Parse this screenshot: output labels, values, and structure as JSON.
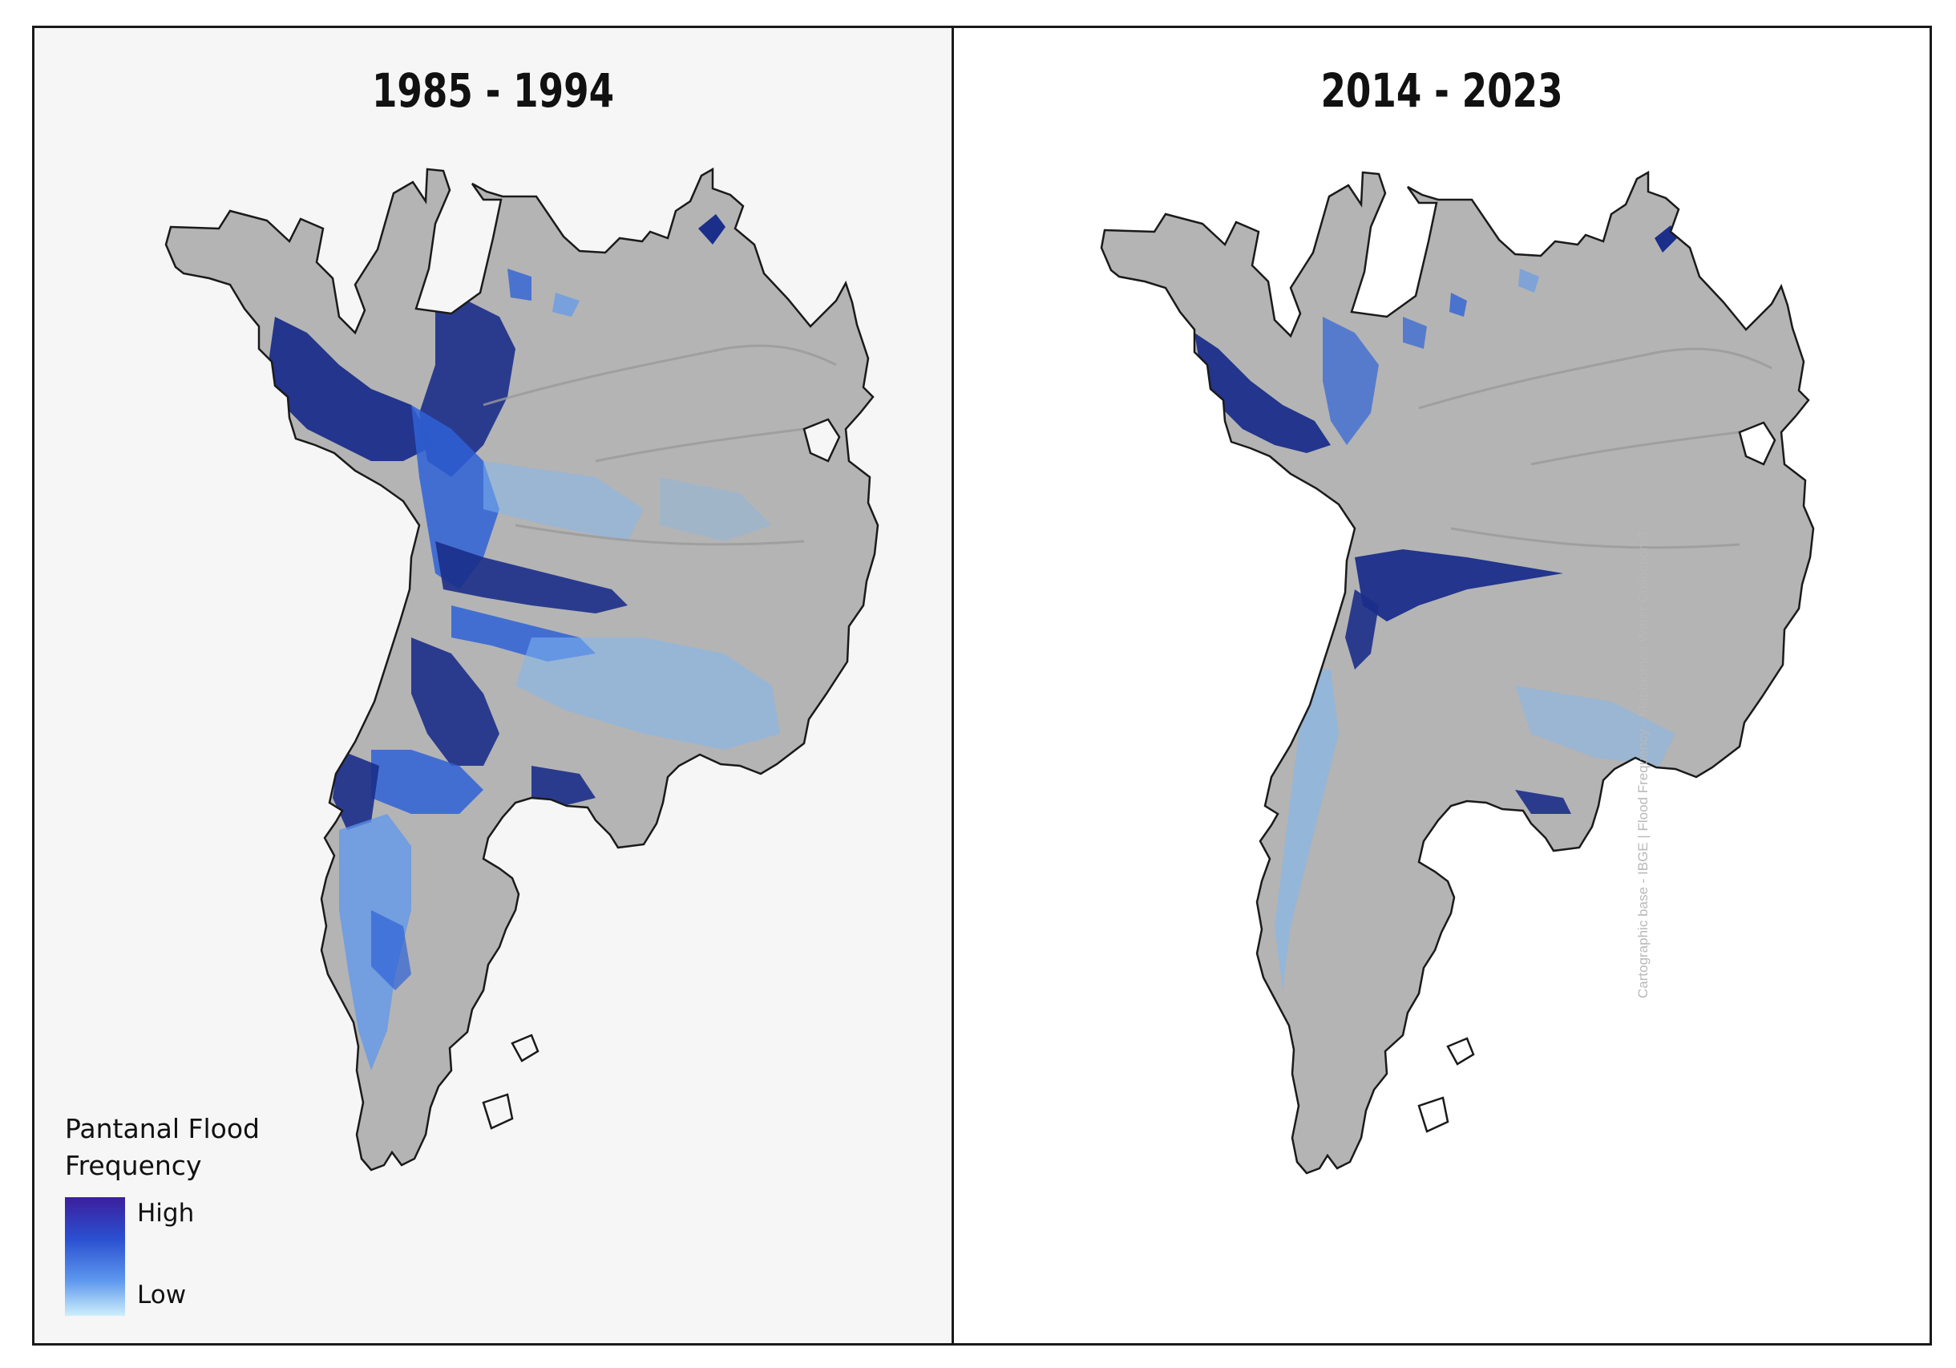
{
  "panels": [
    {
      "title": "1985 - 1994"
    },
    {
      "title": "2014 - 2023"
    }
  ],
  "legend": {
    "title_line1": "Pantanal Flood",
    "title_line2": "Frequency",
    "high_label": "High",
    "low_label": "Low",
    "ramp_colors": [
      "#3b1f9e",
      "#2a4fd0",
      "#5d97ee",
      "#cdeefb"
    ]
  },
  "credit": "Cartographic base - IBGE  |   Flood Frequency - Mapbiomas Water Collection 3",
  "colors": {
    "land": "#b4b4b4",
    "outline": "#1a1a1a",
    "flood_high": "#1b2e8a",
    "flood_mid": "#2f62d6",
    "flood_low": "#7fb8f2"
  }
}
